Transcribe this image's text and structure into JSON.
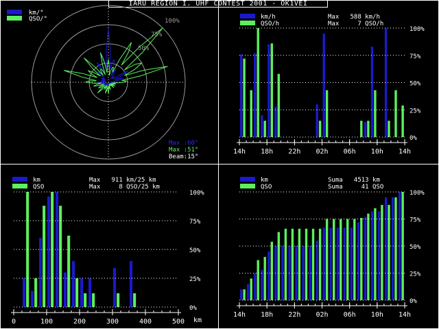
{
  "window": {
    "title": "IARU REGION I. UHF CONTEST 2001 - OK1VEI"
  },
  "colors": {
    "background": "#000000",
    "blue": "#1a1acc",
    "green": "#5cf05c",
    "white": "#ffffff",
    "grid": "#9a9a9a"
  },
  "polar": {
    "legend": [
      "km/°",
      "QSO/°"
    ],
    "ring_labels": [
      "100%",
      "75%",
      "50%"
    ],
    "max_km": "Max :60°",
    "max_qso": "Max :51°",
    "beam": "Beam:15°",
    "chart_data": {
      "type": "polar",
      "angle_step_deg": 15,
      "series": [
        {
          "name": "km/°",
          "color": "#1a1acc",
          "values": [
            0.7,
            0.3,
            0.2,
            0.1,
            0.3,
            0.2,
            0.1,
            0.05,
            0.05,
            0.05,
            0.05,
            0.05,
            0.05,
            0.05,
            0.05,
            0.05,
            0.1,
            0.1,
            0.15,
            0.1,
            0.1,
            0.2,
            0.3,
            0.4
          ]
        },
        {
          "name": "QSO/°",
          "color": "#5cf05c",
          "values": [
            0.3,
            0.2,
            0.6,
            1.0,
            0.5,
            0.8,
            0.2,
            0.1,
            0.1,
            0.1,
            0.05,
            0.1,
            0.15,
            0.15,
            0.1,
            0.2,
            0.15,
            0.2,
            0.3,
            0.6,
            0.3,
            0.45,
            0.2,
            0.4
          ]
        }
      ]
    }
  },
  "panel_tr": {
    "legend": [
      "km/h",
      "QSO/h"
    ],
    "max_lines": [
      "Max   588 km/h",
      "Max     7 QSO/h"
    ],
    "y_ticks": [
      "100%",
      "75%",
      "50%",
      "25%",
      "0%"
    ],
    "x_ticks": [
      "14h",
      "18h",
      "22h",
      "02h",
      "06h",
      "10h",
      "14h"
    ],
    "chart_data": {
      "type": "bar",
      "categories": [
        "14",
        "15",
        "16",
        "17",
        "18",
        "19",
        "20",
        "21",
        "22",
        "23",
        "00",
        "01",
        "02",
        "03",
        "04",
        "05",
        "06",
        "07",
        "08",
        "09",
        "10",
        "11",
        "12",
        "13"
      ],
      "series": [
        {
          "name": "km/h",
          "values": [
            0.76,
            0.0,
            0.77,
            0.2,
            0.85,
            0.28,
            0.0,
            0.0,
            0.0,
            0.0,
            0.0,
            0.3,
            0.95,
            0.0,
            0.0,
            0.0,
            0.0,
            0.0,
            0.14,
            0.83,
            0.0,
            1.0,
            0.0,
            0.0
          ]
        },
        {
          "name": "QSO/h",
          "values": [
            0.72,
            0.43,
            1.0,
            0.15,
            0.86,
            0.58,
            0.0,
            0.0,
            0.0,
            0.0,
            0.0,
            0.15,
            0.43,
            0.0,
            0.0,
            0.0,
            0.0,
            0.15,
            0.15,
            0.43,
            0.0,
            0.15,
            0.43,
            0.29
          ]
        }
      ],
      "ylim": [
        0,
        1
      ]
    }
  },
  "panel_bl": {
    "legend": [
      "km",
      "QSO"
    ],
    "max_lines": [
      "Max   911 km/25 km",
      "Max     8 QSO/25 km"
    ],
    "y_ticks": [
      "100%",
      "75%",
      "50%",
      "25%",
      "0%"
    ],
    "x_ticks": [
      "0",
      "100",
      "200",
      "300",
      "400",
      "500"
    ],
    "x_unit": "km",
    "chart_data": {
      "type": "bar",
      "categories": [
        0,
        25,
        50,
        75,
        100,
        125,
        150,
        175,
        200,
        225,
        250,
        275,
        300,
        325,
        350,
        375,
        400,
        425,
        450,
        475
      ],
      "series": [
        {
          "name": "km",
          "values": [
            0.0,
            0.25,
            0.14,
            0.6,
            0.96,
            1.0,
            0.3,
            0.4,
            0.25,
            0.25,
            0.0,
            0.0,
            0.34,
            0.0,
            0.4,
            0.0,
            0.0,
            0.0,
            0.0,
            0.0
          ]
        },
        {
          "name": "QSO",
          "values": [
            0.0,
            1.0,
            0.25,
            0.88,
            1.0,
            0.88,
            0.62,
            0.25,
            0.12,
            0.12,
            0.0,
            0.0,
            0.12,
            0.0,
            0.12,
            0.0,
            0.0,
            0.0,
            0.0,
            0.0
          ]
        }
      ],
      "ylim": [
        0,
        1
      ]
    }
  },
  "panel_br": {
    "legend": [
      "km",
      "QSO"
    ],
    "max_lines": [
      "Suma   4513 km",
      "Suma     41 QSO"
    ],
    "y_ticks": [
      "100%",
      "75%",
      "50%",
      "25%",
      "0%"
    ],
    "x_ticks": [
      "14h",
      "18h",
      "22h",
      "02h",
      "06h",
      "10h",
      "14h"
    ],
    "chart_data": {
      "type": "bar",
      "categories": [
        "14",
        "15",
        "16",
        "17",
        "18",
        "19",
        "20",
        "21",
        "22",
        "23",
        "00",
        "01",
        "02",
        "03",
        "04",
        "05",
        "06",
        "07",
        "08",
        "09",
        "10",
        "11",
        "12",
        "13"
      ],
      "series": [
        {
          "name": "km",
          "values": [
            0.1,
            0.15,
            0.25,
            0.28,
            0.45,
            0.5,
            0.5,
            0.5,
            0.5,
            0.5,
            0.5,
            0.55,
            0.67,
            0.67,
            0.67,
            0.67,
            0.67,
            0.72,
            0.77,
            0.82,
            0.82,
            0.95,
            0.95,
            1.0
          ]
        },
        {
          "name": "QSO",
          "values": [
            0.1,
            0.2,
            0.37,
            0.4,
            0.54,
            0.63,
            0.66,
            0.66,
            0.66,
            0.66,
            0.66,
            0.66,
            0.75,
            0.75,
            0.75,
            0.75,
            0.75,
            0.76,
            0.8,
            0.85,
            0.88,
            0.88,
            0.95,
            1.0
          ]
        }
      ],
      "ylim": [
        0,
        1
      ]
    }
  }
}
